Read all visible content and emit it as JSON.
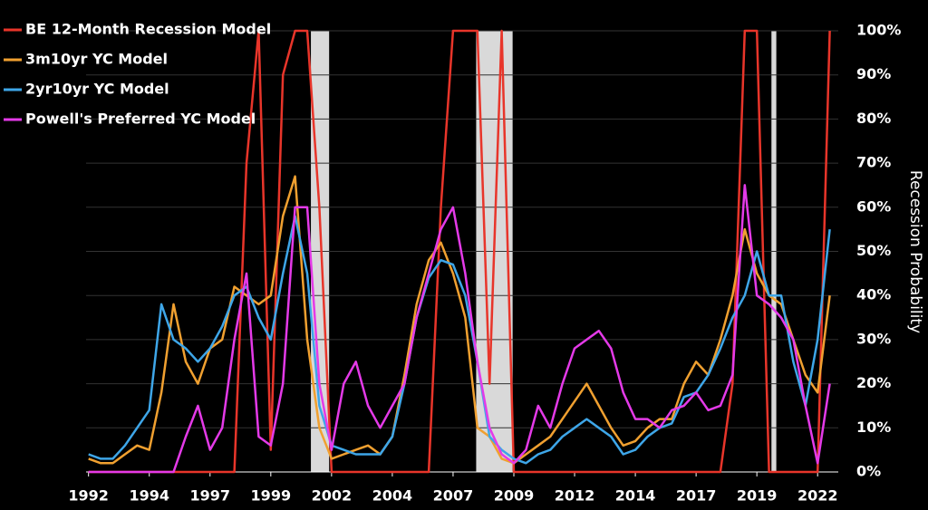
{
  "chart_data": {
    "type": "line",
    "y_label": "Recession Probability",
    "x": [
      1992,
      1992.5,
      1993,
      1993.5,
      1994,
      1994.5,
      1995,
      1995.5,
      1996,
      1996.5,
      1997,
      1997.5,
      1998,
      1998.5,
      1999,
      1999.5,
      2000,
      2000.5,
      2001,
      2001.5,
      2002,
      2002.5,
      2003,
      2003.5,
      2004,
      2004.5,
      2005,
      2005.5,
      2006,
      2006.5,
      2007,
      2007.5,
      2008,
      2008.5,
      2009,
      2009.5,
      2010,
      2010.5,
      2011,
      2011.5,
      2012,
      2012.5,
      2013,
      2013.5,
      2014,
      2014.5,
      2015,
      2015.5,
      2016,
      2016.5,
      2017,
      2017.5,
      2018,
      2018.5,
      2019,
      2019.5,
      2020,
      2020.5,
      2021,
      2021.5,
      2022,
      2022.5
    ],
    "series": [
      {
        "name": "BE 12-Month Recession Model",
        "color": "#e8352a",
        "values": [
          0,
          0,
          0,
          0,
          0,
          0,
          0,
          0,
          0,
          0,
          0,
          0,
          0,
          70,
          100,
          5,
          90,
          100,
          100,
          60,
          0,
          0,
          0,
          0,
          0,
          0,
          0,
          0,
          0,
          60,
          100,
          100,
          100,
          20,
          100,
          0,
          0,
          0,
          0,
          0,
          0,
          0,
          0,
          0,
          0,
          0,
          0,
          0,
          0,
          0,
          0,
          0,
          0,
          20,
          100,
          100,
          0,
          0,
          0,
          0,
          0,
          100
        ]
      },
      {
        "name": "3m10yr YC Model",
        "color": "#f0a030",
        "values": [
          3,
          2,
          2,
          4,
          6,
          5,
          18,
          38,
          25,
          20,
          28,
          30,
          42,
          40,
          38,
          40,
          58,
          67,
          30,
          10,
          3,
          4,
          5,
          6,
          4,
          8,
          22,
          38,
          48,
          52,
          45,
          35,
          10,
          8,
          3,
          2,
          4,
          6,
          8,
          12,
          16,
          20,
          15,
          10,
          6,
          7,
          10,
          12,
          12,
          20,
          25,
          22,
          30,
          40,
          55,
          45,
          40,
          38,
          30,
          22,
          18,
          40
        ]
      },
      {
        "name": "2yr10yr YC Model",
        "color": "#3ea6e8",
        "values": [
          4,
          3,
          3,
          6,
          10,
          14,
          38,
          30,
          28,
          25,
          28,
          33,
          40,
          42,
          35,
          30,
          45,
          58,
          45,
          15,
          6,
          5,
          4,
          4,
          4,
          8,
          20,
          35,
          44,
          48,
          47,
          40,
          25,
          8,
          5,
          3,
          2,
          4,
          5,
          8,
          10,
          12,
          10,
          8,
          4,
          5,
          8,
          10,
          11,
          17,
          18,
          22,
          28,
          35,
          40,
          50,
          40,
          40,
          25,
          15,
          30,
          55
        ]
      },
      {
        "name": "Powell's Preferred YC Model",
        "color": "#e43ae8",
        "values": [
          0,
          0,
          0,
          0,
          0,
          0,
          0,
          0,
          8,
          15,
          5,
          10,
          30,
          45,
          8,
          6,
          20,
          60,
          60,
          20,
          5,
          20,
          25,
          15,
          10,
          15,
          20,
          35,
          45,
          55,
          60,
          45,
          25,
          10,
          4,
          2,
          5,
          15,
          10,
          20,
          28,
          30,
          32,
          28,
          18,
          12,
          12,
          10,
          14,
          15,
          18,
          14,
          15,
          22,
          65,
          40,
          38,
          35,
          30,
          15,
          2,
          20
        ]
      }
    ],
    "shaded_regions": [
      [
        2001.15,
        2001.9
      ],
      [
        2007.95,
        2009.45
      ],
      [
        2020.1,
        2020.3
      ]
    ],
    "shade_color": "#d9d9d9",
    "xlim": [
      1991.9,
      2022.85
    ],
    "xticks": [
      1992,
      {
        "value": 1994.5,
        "label": "1994"
      },
      {
        "value": 1997,
        "label": "1997"
      },
      {
        "value": 1999.5,
        "label": "1999"
      },
      2002,
      {
        "value": 2004.5,
        "label": "2004"
      },
      2007,
      {
        "value": 2009.5,
        "label": "2009"
      },
      2012,
      {
        "value": 2014.5,
        "label": "2014"
      },
      2017,
      {
        "value": 2019.5,
        "label": "2019"
      },
      2022
    ],
    "ylim": [
      0,
      100
    ],
    "yticks": [
      {
        "value": 0,
        "label": "0%"
      },
      {
        "value": 10,
        "label": "10%"
      },
      {
        "value": 20,
        "label": "20%"
      },
      {
        "value": 30,
        "label": "30%"
      },
      {
        "value": 40,
        "label": "40%"
      },
      {
        "value": 50,
        "label": "50%"
      },
      {
        "value": 60,
        "label": "60%"
      },
      {
        "value": 70,
        "label": "70%"
      },
      {
        "value": 80,
        "label": "80%"
      },
      {
        "value": 90,
        "label": "90%"
      },
      {
        "value": 100,
        "label": "100%"
      }
    ],
    "grid": true,
    "legend": "top-left"
  }
}
